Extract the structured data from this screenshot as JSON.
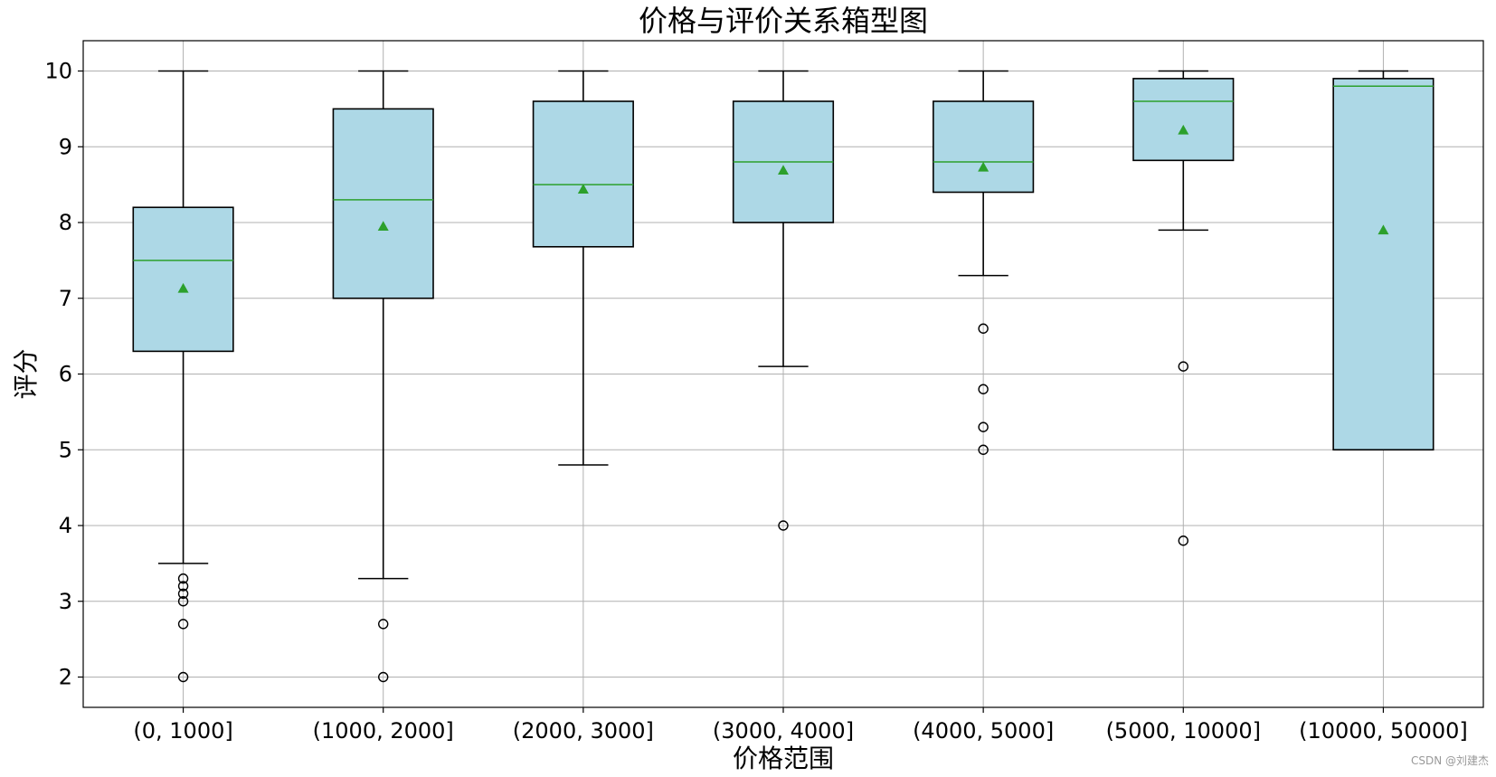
{
  "chart_data": {
    "type": "box",
    "title": "价格与评价关系箱型图",
    "xlabel": "价格范围",
    "ylabel": "评分",
    "categories": [
      "(0, 1000]",
      "(1000, 2000]",
      "(2000, 3000]",
      "(3000, 4000]",
      "(4000, 5000]",
      "(5000, 10000]",
      "(10000, 50000]"
    ],
    "yticks": [
      "2",
      "3",
      "4",
      "5",
      "6",
      "7",
      "8",
      "9",
      "10"
    ],
    "ylim": [
      1.6,
      10.4
    ],
    "grid": true,
    "boxes": [
      {
        "whisker_low": 3.5,
        "q1": 6.3,
        "median": 7.5,
        "q3": 8.2,
        "whisker_high": 10.0,
        "mean": 7.13,
        "outliers": [
          3.3,
          3.2,
          3.1,
          3.0,
          2.7,
          2.0
        ]
      },
      {
        "whisker_low": 3.3,
        "q1": 7.0,
        "median": 8.3,
        "q3": 9.5,
        "whisker_high": 10.0,
        "mean": 7.95,
        "outliers": [
          2.7,
          2.0
        ]
      },
      {
        "whisker_low": 4.8,
        "q1": 7.68,
        "median": 8.5,
        "q3": 9.6,
        "whisker_high": 10.0,
        "mean": 8.44,
        "outliers": []
      },
      {
        "whisker_low": 6.1,
        "q1": 8.0,
        "median": 8.8,
        "q3": 9.6,
        "whisker_high": 10.0,
        "mean": 8.69,
        "outliers": [
          4.0
        ]
      },
      {
        "whisker_low": 7.3,
        "q1": 8.4,
        "median": 8.8,
        "q3": 9.6,
        "whisker_high": 10.0,
        "mean": 8.73,
        "outliers": [
          6.6,
          5.8,
          5.3,
          5.0
        ]
      },
      {
        "whisker_low": 7.9,
        "q1": 8.82,
        "median": 9.6,
        "q3": 9.9,
        "whisker_high": 10.0,
        "mean": 9.22,
        "outliers": [
          6.1,
          3.8
        ]
      },
      {
        "whisker_low": 5.0,
        "q1": 5.0,
        "median": 9.8,
        "q3": 9.9,
        "whisker_high": 10.0,
        "mean": 7.9,
        "outliers": []
      }
    ],
    "colors": {
      "box_fill": "#add8e6",
      "box_edge": "#000000",
      "median": "#2ca02c",
      "mean_marker": "#2ca02c",
      "grid": "#b0b0b0"
    }
  },
  "watermark": "CSDN @刘建杰"
}
